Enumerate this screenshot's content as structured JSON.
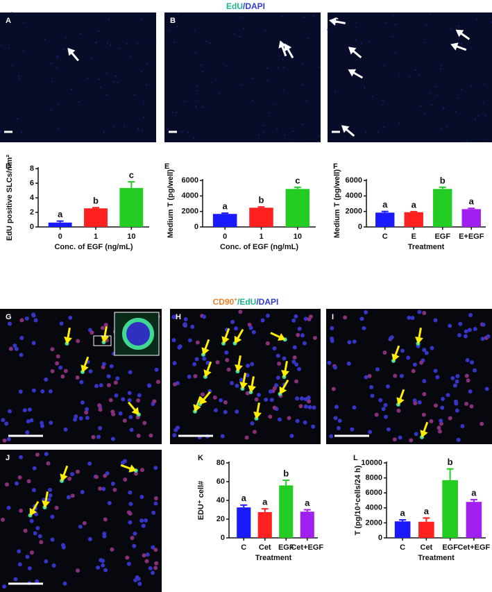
{
  "top_title": {
    "parts": [
      "EdU",
      "/DAPI"
    ]
  },
  "top_panels": [
    "A",
    "B",
    "C"
  ],
  "bottom_title": {
    "parts": [
      "CD90",
      "+",
      "/EdU",
      "/DAPI"
    ]
  },
  "bottom_panels": [
    "G",
    "H",
    "I",
    "J"
  ],
  "chart_data": [
    {
      "type": "bar",
      "panel": "D",
      "y_label": "EdU positive SLCs/mm²",
      "x_label": "Conc. of EGF (ng/mL)",
      "categories": [
        "0",
        "1",
        "10"
      ],
      "values": [
        0.6,
        2.55,
        5.35
      ],
      "errors": [
        0.2,
        0.1,
        0.85
      ],
      "letters": [
        "a",
        "b",
        "c"
      ],
      "colors": [
        "#1a1aff",
        "#ff2020",
        "#22cc22"
      ],
      "ylim": [
        0,
        8
      ],
      "yticks": [
        0,
        2,
        4,
        6,
        8
      ]
    },
    {
      "type": "bar",
      "panel": "E",
      "y_label": "Medium T (pg/well)",
      "x_label": "Conc. of EGF (ng/mL)",
      "categories": [
        "0",
        "1",
        "10"
      ],
      "values": [
        1680,
        2480,
        4900
      ],
      "errors": [
        100,
        100,
        220
      ],
      "letters": [
        "a",
        "b",
        "c"
      ],
      "colors": [
        "#1a1aff",
        "#ff2020",
        "#22cc22"
      ],
      "ylim": [
        0,
        6000
      ],
      "yticks": [
        0,
        2000,
        4000,
        6000
      ]
    },
    {
      "type": "bar",
      "panel": "F",
      "y_label": "Medium T (pg/well)",
      "x_label": "Treatment",
      "categories": [
        "C",
        "E",
        "EGF",
        "E+EGF"
      ],
      "values": [
        1850,
        1900,
        4900,
        2300
      ],
      "errors": [
        150,
        80,
        220,
        100
      ],
      "letters": [
        "a",
        "a",
        "b",
        "a"
      ],
      "colors": [
        "#1a1aff",
        "#ff2020",
        "#22cc22",
        "#a020f0"
      ],
      "ylim": [
        0,
        6000
      ],
      "yticks": [
        0,
        2000,
        4000,
        6000
      ]
    },
    {
      "type": "bar",
      "panel": "K",
      "y_label": "EDU⁺ cell#",
      "x_label": "Treatment",
      "categories": [
        "C",
        "Cet",
        "EGF",
        "Cet+EGF"
      ],
      "values": [
        32.5,
        27.5,
        56,
        28
      ],
      "errors": [
        2.5,
        3.5,
        5.5,
        2
      ],
      "letters": [
        "a",
        "a",
        "b",
        "a"
      ],
      "colors": [
        "#1a1aff",
        "#ff2020",
        "#22cc22",
        "#a020f0"
      ],
      "ylim": [
        0,
        80
      ],
      "yticks": [
        0,
        20,
        40,
        60,
        80
      ]
    },
    {
      "type": "bar",
      "panel": "L",
      "y_label": "T (pg/10⁴cells/24 h)",
      "x_label": "Treatment",
      "categories": [
        "C",
        "Cet",
        "EGF",
        "Cet+EGF"
      ],
      "values": [
        2200,
        2150,
        7700,
        4800
      ],
      "errors": [
        200,
        500,
        1500,
        300
      ],
      "letters": [
        "a",
        "a",
        "b",
        "a"
      ],
      "colors": [
        "#1a1aff",
        "#ff2020",
        "#22cc22",
        "#a020f0"
      ],
      "ylim": [
        0,
        10000
      ],
      "yticks": [
        0,
        2000,
        4000,
        6000,
        8000,
        10000
      ]
    }
  ]
}
